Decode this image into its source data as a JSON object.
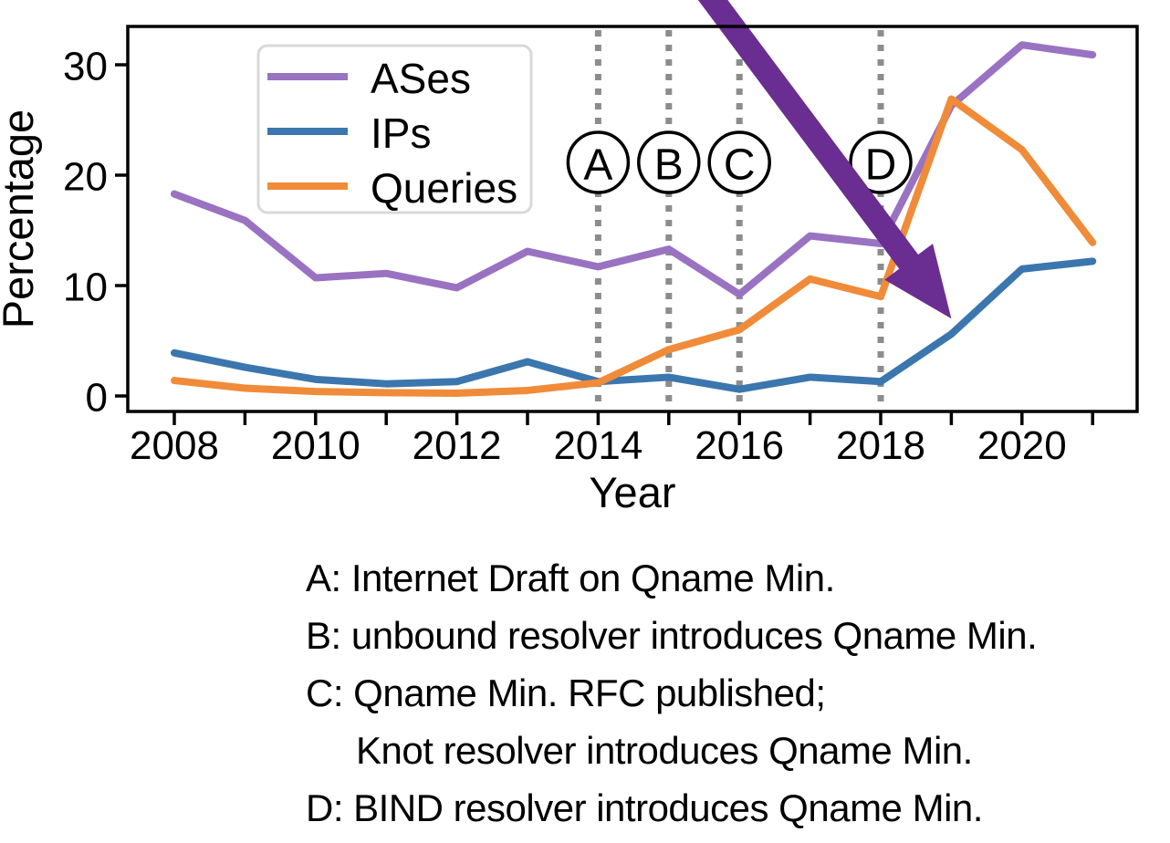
{
  "chart_data": {
    "type": "line",
    "title": "",
    "xlabel": "Year",
    "ylabel": "Percentage",
    "x": [
      2008,
      2009,
      2010,
      2011,
      2012,
      2013,
      2014,
      2015,
      2016,
      2017,
      2018,
      2019,
      2020,
      2021
    ],
    "x_tick_labels": [
      "2008",
      "2010",
      "2012",
      "2014",
      "2016",
      "2018",
      "2020"
    ],
    "y_ticks": [
      0,
      10,
      20,
      30
    ],
    "xlim": [
      2007.35,
      2021.65
    ],
    "ylim": [
      -1.4,
      33.5
    ],
    "grid": false,
    "legend_position": "upper-left",
    "series": [
      {
        "name": "ASes",
        "color": "#9a72c2",
        "values": [
          18.3,
          15.9,
          10.7,
          11.1,
          9.8,
          13.1,
          11.7,
          13.3,
          9.2,
          14.5,
          13.8,
          26.3,
          31.8,
          30.9
        ]
      },
      {
        "name": "IPs",
        "color": "#3b76ae",
        "values": [
          3.9,
          2.6,
          1.5,
          1.1,
          1.3,
          3.1,
          1.3,
          1.7,
          0.6,
          1.7,
          1.3,
          5.6,
          11.5,
          12.2
        ]
      },
      {
        "name": "Queries",
        "color": "#f08b39",
        "values": [
          1.4,
          0.7,
          0.4,
          0.3,
          0.25,
          0.5,
          1.2,
          4.2,
          6.0,
          10.6,
          9.0,
          26.9,
          22.3,
          13.9
        ]
      }
    ],
    "event_markers": {
      "line_color": "#8c8c8c",
      "circle_fill": "#ffffff",
      "circle_stroke": "#000000",
      "items": [
        {
          "label": "A",
          "year": 2014
        },
        {
          "label": "B",
          "year": 2015
        },
        {
          "label": "C",
          "year": 2016
        },
        {
          "label": "D",
          "year": 2018
        }
      ]
    },
    "arrow": {
      "color": "#6a2d91",
      "points_to": {
        "year": 2019,
        "value": 7
      }
    }
  },
  "notes": {
    "lines": [
      {
        "text": "A: Internet Draft on Qname Min.",
        "indent": false
      },
      {
        "text": "B: unbound resolver introduces Qname Min.",
        "indent": false
      },
      {
        "text": "C: Qname Min. RFC published;",
        "indent": false
      },
      {
        "text": "Knot resolver introduces Qname Min.",
        "indent": true
      },
      {
        "text": "D: BIND resolver introduces Qname Min.",
        "indent": false
      }
    ]
  }
}
